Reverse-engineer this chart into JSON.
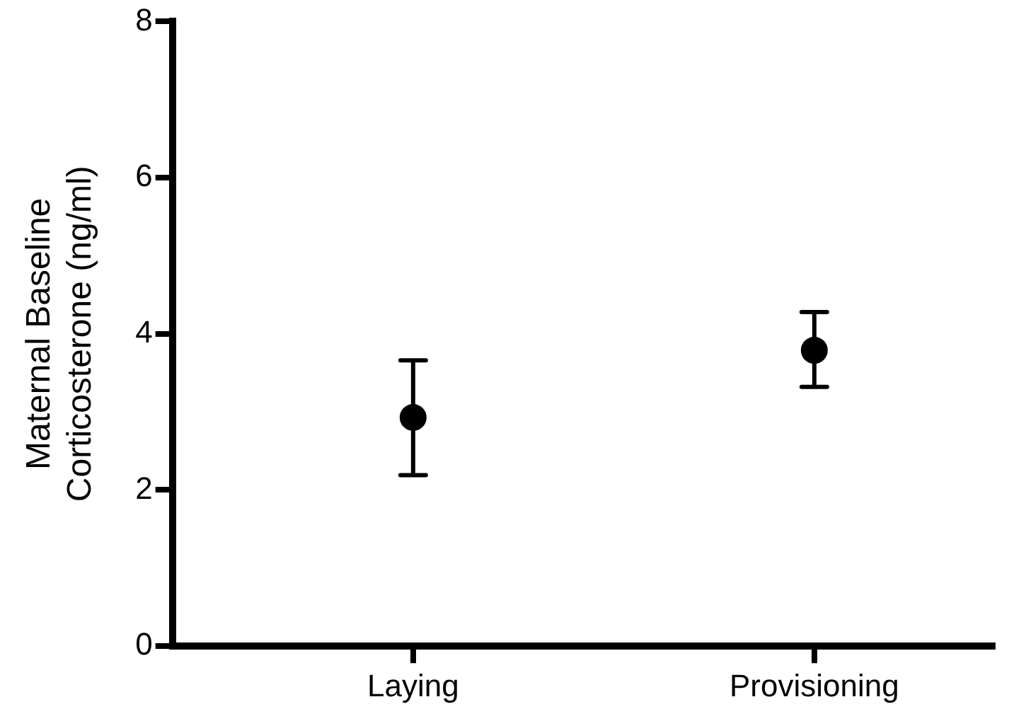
{
  "chart_data": {
    "type": "scatter",
    "ylabel": "Maternal Baseline\nCorticosterone (ng/ml)",
    "categories": [
      "Laying",
      "Provisioning"
    ],
    "series": [
      {
        "color": "#000000",
        "values": [
          2.93,
          3.79
        ],
        "errors": [
          [
            2.19,
            3.66
          ],
          [
            3.32,
            4.28
          ]
        ]
      }
    ],
    "ylim": [
      0,
      8
    ],
    "yticks": [
      0,
      2,
      4,
      6,
      8
    ],
    "grid": false,
    "legend": false,
    "marker": "circle"
  }
}
